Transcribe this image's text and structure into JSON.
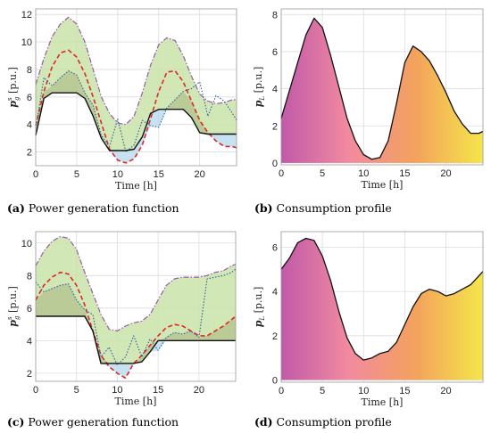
{
  "captions": [
    {
      "letter": "(a)",
      "text": " Power generation function"
    },
    {
      "letter": "(b)",
      "text": " Consumption profile"
    },
    {
      "letter": "(c)",
      "text": " Power generation function"
    },
    {
      "letter": "(d)",
      "text": " Consumption profile"
    }
  ],
  "chart_data": [
    {
      "type": "area",
      "panel": "a",
      "xlabel": "Time [h]",
      "ylabel": "p_g^s [p.u.]",
      "xlim": [
        0,
        24.5
      ],
      "ylim": [
        1,
        12.4
      ],
      "xticks": [
        0,
        5,
        10,
        15,
        20
      ],
      "yticks": [
        2,
        4,
        6,
        8,
        10,
        12
      ],
      "grid": true,
      "x": [
        0,
        1,
        2,
        3,
        4,
        5,
        6,
        7,
        8,
        9,
        10,
        11,
        12,
        13,
        14,
        15,
        16,
        17,
        18,
        19,
        20,
        21,
        22,
        23,
        24,
        24.5
      ],
      "series": [
        {
          "style": "upper-dashdot",
          "color": "#9a5aa8",
          "values": [
            6.9,
            8.8,
            10.4,
            11.3,
            11.8,
            11.3,
            10.0,
            8.0,
            6.0,
            4.8,
            4.1,
            4.0,
            4.6,
            6.3,
            8.3,
            9.8,
            10.3,
            10.1,
            9.0,
            7.5,
            6.2,
            5.7,
            5.5,
            5.6,
            5.8,
            5.8
          ]
        },
        {
          "style": "red-dashed",
          "color": "#e0262b",
          "values": [
            3.9,
            6.4,
            8.2,
            9.2,
            9.4,
            8.9,
            7.7,
            6.0,
            4.1,
            2.2,
            1.4,
            1.2,
            1.5,
            2.5,
            4.4,
            6.4,
            7.8,
            7.9,
            7.1,
            5.7,
            4.3,
            3.4,
            2.8,
            2.4,
            2.4,
            2.3
          ]
        },
        {
          "style": "blue-dotted",
          "color": "#2f5ca8",
          "values": [
            3.7,
            7.4,
            6.8,
            7.4,
            7.9,
            7.6,
            6.3,
            5.4,
            3.2,
            2.4,
            4.4,
            2.0,
            2.5,
            4.3,
            3.9,
            3.8,
            5.2,
            5.8,
            6.4,
            6.6,
            7.1,
            4.6,
            6.1,
            5.7,
            4.8,
            4.3
          ]
        },
        {
          "style": "black-solid",
          "color": "#111111",
          "values": [
            3.2,
            5.9,
            6.3,
            6.3,
            6.3,
            6.3,
            5.9,
            4.6,
            3.0,
            2.1,
            2.1,
            2.1,
            2.2,
            3.1,
            4.8,
            5.1,
            5.1,
            5.1,
            5.1,
            4.5,
            3.4,
            3.3,
            3.3,
            3.3,
            3.3,
            3.3
          ]
        }
      ]
    },
    {
      "type": "area",
      "panel": "b",
      "xlabel": "Time [h]",
      "ylabel": "p_L [p.u.]",
      "xlim": [
        0,
        24.5
      ],
      "ylim": [
        -0.1,
        8.3
      ],
      "xticks": [
        0,
        5,
        10,
        15,
        20
      ],
      "yticks": [
        0,
        2,
        4,
        6,
        8
      ],
      "grid": true,
      "gradient": [
        "#c05aa8",
        "#f28aa0",
        "#f3a25c",
        "#f5e64a"
      ],
      "x": [
        0,
        1,
        2,
        3,
        4,
        5,
        6,
        7,
        8,
        9,
        10,
        11,
        12,
        13,
        14,
        15,
        16,
        17,
        18,
        19,
        20,
        21,
        22,
        23,
        24,
        24.5
      ],
      "values": [
        2.4,
        3.9,
        5.4,
        6.9,
        7.8,
        7.3,
        5.8,
        4.1,
        2.4,
        1.2,
        0.45,
        0.2,
        0.3,
        1.2,
        3.2,
        5.4,
        6.3,
        6.0,
        5.5,
        4.7,
        3.8,
        2.8,
        2.1,
        1.6,
        1.6,
        1.7
      ]
    },
    {
      "type": "area",
      "panel": "c",
      "xlabel": "Time [h]",
      "ylabel": "p_g^s [p.u.]",
      "xlim": [
        0,
        24.5
      ],
      "ylim": [
        1.5,
        10.7
      ],
      "xticks": [
        0,
        5,
        10,
        15,
        20
      ],
      "yticks": [
        2,
        4,
        6,
        8,
        10
      ],
      "grid": true,
      "x": [
        0,
        1,
        2,
        3,
        4,
        5,
        6,
        7,
        8,
        9,
        10,
        11,
        12,
        13,
        14,
        15,
        16,
        17,
        18,
        19,
        20,
        21,
        22,
        23,
        24,
        24.5
      ],
      "series": [
        {
          "style": "upper-dashdot",
          "color": "#9a5aa8",
          "values": [
            8.6,
            9.5,
            10.1,
            10.4,
            10.3,
            9.6,
            8.2,
            6.9,
            5.6,
            4.7,
            4.6,
            4.9,
            5.1,
            5.2,
            5.6,
            6.5,
            7.4,
            7.8,
            7.9,
            7.9,
            7.9,
            8.0,
            8.2,
            8.3,
            8.6,
            8.7
          ]
        },
        {
          "style": "red-dashed",
          "color": "#e0262b",
          "values": [
            6.5,
            7.4,
            7.9,
            8.2,
            8.1,
            7.4,
            6.2,
            4.6,
            3.1,
            2.4,
            2.0,
            1.7,
            2.6,
            3.1,
            3.7,
            4.3,
            4.8,
            5.0,
            4.9,
            4.6,
            4.3,
            4.3,
            4.6,
            4.9,
            5.3,
            5.5
          ]
        },
        {
          "style": "blue-dotted",
          "color": "#2f5ca8",
          "values": [
            7.6,
            7.0,
            7.2,
            7.4,
            7.5,
            6.5,
            5.9,
            5.6,
            3.0,
            3.6,
            2.5,
            3.0,
            4.3,
            3.0,
            4.1,
            3.4,
            4.2,
            4.5,
            4.4,
            4.6,
            4.2,
            7.8,
            7.9,
            8.0,
            8.2,
            8.4
          ]
        },
        {
          "style": "black-solid",
          "color": "#111111",
          "values": [
            5.5,
            5.5,
            5.5,
            5.5,
            5.5,
            5.5,
            5.5,
            4.6,
            2.6,
            2.6,
            2.6,
            2.6,
            2.6,
            2.7,
            3.3,
            4.0,
            4.0,
            4.0,
            4.0,
            4.0,
            4.0,
            4.0,
            4.0,
            4.0,
            4.0,
            4.0
          ]
        }
      ]
    },
    {
      "type": "area",
      "panel": "d",
      "xlabel": "Time [h]",
      "ylabel": "p_L [p.u.]",
      "xlim": [
        0,
        24.5
      ],
      "ylim": [
        -0.1,
        6.7
      ],
      "xticks": [
        0,
        5,
        10,
        15,
        20
      ],
      "yticks": [
        0,
        2,
        4,
        6
      ],
      "grid": true,
      "gradient": [
        "#c05aa8",
        "#f28aa0",
        "#f3a25c",
        "#f5e64a"
      ],
      "x": [
        0,
        1,
        2,
        3,
        4,
        5,
        6,
        7,
        8,
        9,
        10,
        11,
        12,
        13,
        14,
        15,
        16,
        17,
        18,
        19,
        20,
        21,
        22,
        23,
        24,
        24.5
      ],
      "values": [
        5.0,
        5.5,
        6.2,
        6.4,
        6.3,
        5.6,
        4.5,
        3.1,
        1.9,
        1.2,
        0.9,
        1.0,
        1.2,
        1.3,
        1.7,
        2.5,
        3.3,
        3.9,
        4.1,
        4.0,
        3.8,
        3.9,
        4.1,
        4.3,
        4.7,
        4.9
      ]
    }
  ]
}
